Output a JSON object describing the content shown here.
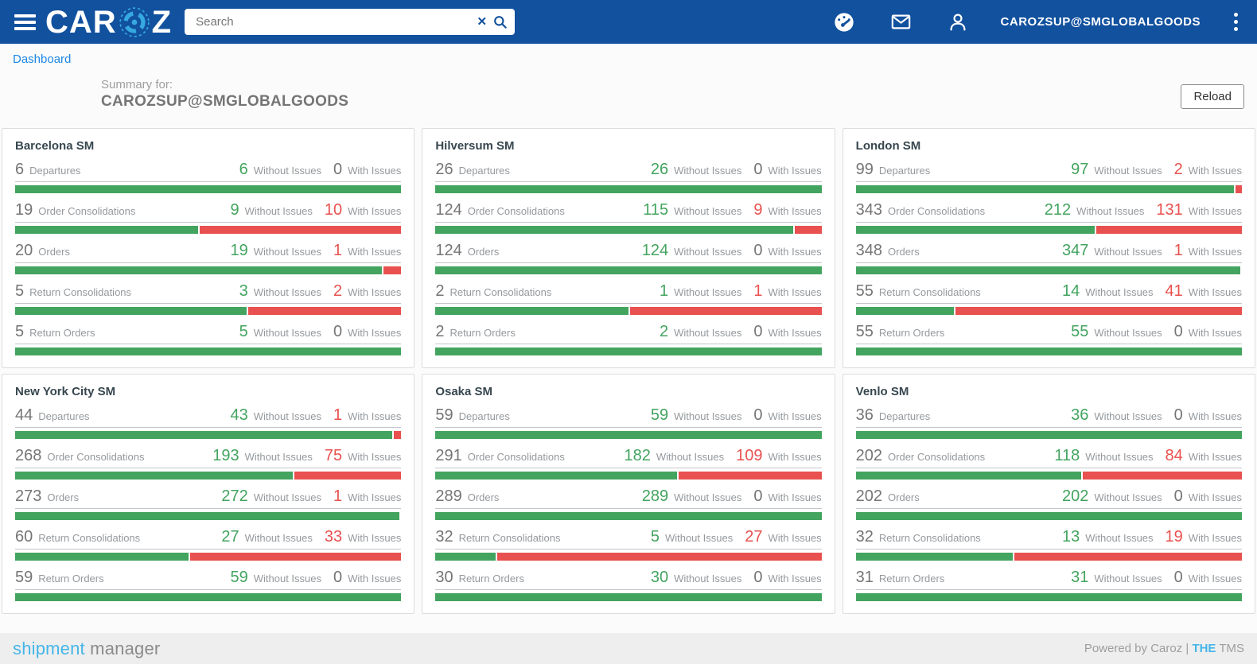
{
  "colors": {
    "navbar_blue": "#11519e",
    "brand_light_blue": "#36a9e1",
    "accent_light_blue": "#45b6e8",
    "link_blue": "#1e88e5",
    "success_green": "#43a45f",
    "issue_red": "#e8514f"
  },
  "navbar": {
    "brand_prefix": "CAR",
    "brand_suffix": "Z",
    "search": {
      "placeholder": "Search",
      "value": "",
      "clear_glyph": "✕"
    },
    "user_email": "CAROZSUP@SMGLOBALGOODS",
    "icons": [
      "hamburger-menu-icon",
      "speedometer-icon",
      "mail-icon",
      "person-icon",
      "kebab-menu-icon",
      "clear-search-icon",
      "search-icon"
    ]
  },
  "breadcrumb": {
    "label": "Dashboard"
  },
  "summary": {
    "prefix": "Summary for:",
    "account": "CAROZSUP@SMGLOBALGOODS",
    "reload_label": "Reload"
  },
  "labels": {
    "without_issues": "Without Issues",
    "with_issues": "With Issues"
  },
  "cards": [
    {
      "title": "Barcelona SM",
      "rows": [
        {
          "count": 6,
          "label": "Departures",
          "without_issues": 6,
          "with_issues": 0
        },
        {
          "count": 19,
          "label": "Order Consolidations",
          "without_issues": 9,
          "with_issues": 10
        },
        {
          "count": 20,
          "label": "Orders",
          "without_issues": 19,
          "with_issues": 1
        },
        {
          "count": 5,
          "label": "Return Consolidations",
          "without_issues": 3,
          "with_issues": 2
        },
        {
          "count": 5,
          "label": "Return Orders",
          "without_issues": 5,
          "with_issues": 0
        }
      ]
    },
    {
      "title": "Hilversum SM",
      "rows": [
        {
          "count": 26,
          "label": "Departures",
          "without_issues": 26,
          "with_issues": 0
        },
        {
          "count": 124,
          "label": "Order Consolidations",
          "without_issues": 115,
          "with_issues": 9
        },
        {
          "count": 124,
          "label": "Orders",
          "without_issues": 124,
          "with_issues": 0
        },
        {
          "count": 2,
          "label": "Return Consolidations",
          "without_issues": 1,
          "with_issues": 1
        },
        {
          "count": 2,
          "label": "Return Orders",
          "without_issues": 2,
          "with_issues": 0
        }
      ]
    },
    {
      "title": "London SM",
      "rows": [
        {
          "count": 99,
          "label": "Departures",
          "without_issues": 97,
          "with_issues": 2
        },
        {
          "count": 343,
          "label": "Order Consolidations",
          "without_issues": 212,
          "with_issues": 131
        },
        {
          "count": 348,
          "label": "Orders",
          "without_issues": 347,
          "with_issues": 1
        },
        {
          "count": 55,
          "label": "Return Consolidations",
          "without_issues": 14,
          "with_issues": 41
        },
        {
          "count": 55,
          "label": "Return Orders",
          "without_issues": 55,
          "with_issues": 0
        }
      ]
    },
    {
      "title": "New York City SM",
      "rows": [
        {
          "count": 44,
          "label": "Departures",
          "without_issues": 43,
          "with_issues": 1
        },
        {
          "count": 268,
          "label": "Order Consolidations",
          "without_issues": 193,
          "with_issues": 75
        },
        {
          "count": 273,
          "label": "Orders",
          "without_issues": 272,
          "with_issues": 1
        },
        {
          "count": 60,
          "label": "Return Consolidations",
          "without_issues": 27,
          "with_issues": 33
        },
        {
          "count": 59,
          "label": "Return Orders",
          "without_issues": 59,
          "with_issues": 0
        }
      ]
    },
    {
      "title": "Osaka SM",
      "rows": [
        {
          "count": 59,
          "label": "Departures",
          "without_issues": 59,
          "with_issues": 0
        },
        {
          "count": 291,
          "label": "Order Consolidations",
          "without_issues": 182,
          "with_issues": 109
        },
        {
          "count": 289,
          "label": "Orders",
          "without_issues": 289,
          "with_issues": 0
        },
        {
          "count": 32,
          "label": "Return Consolidations",
          "without_issues": 5,
          "with_issues": 27
        },
        {
          "count": 30,
          "label": "Return Orders",
          "without_issues": 30,
          "with_issues": 0
        }
      ]
    },
    {
      "title": "Venlo SM",
      "rows": [
        {
          "count": 36,
          "label": "Departures",
          "without_issues": 36,
          "with_issues": 0
        },
        {
          "count": 202,
          "label": "Order Consolidations",
          "without_issues": 118,
          "with_issues": 84
        },
        {
          "count": 202,
          "label": "Orders",
          "without_issues": 202,
          "with_issues": 0
        },
        {
          "count": 32,
          "label": "Return Consolidations",
          "without_issues": 13,
          "with_issues": 19
        },
        {
          "count": 31,
          "label": "Return Orders",
          "without_issues": 31,
          "with_issues": 0
        }
      ]
    }
  ],
  "footer": {
    "brand_primary": "shipment",
    "brand_secondary": " manager",
    "powered_prefix": "Powered by Caroz | ",
    "tms_brand": "THE",
    "tms_suffix": " TMS"
  }
}
